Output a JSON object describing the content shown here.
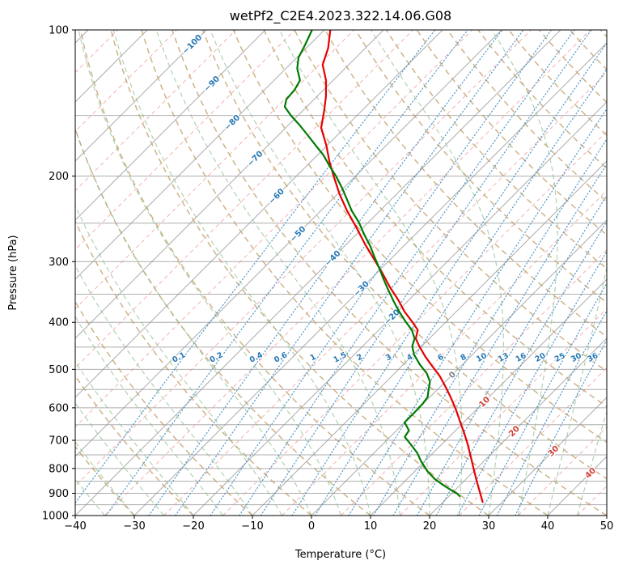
{
  "title": "wetPf2_C2E4.2023.322.14.06.G08",
  "axes": {
    "x": {
      "label": "Temperature (°C)",
      "min": -40,
      "max": 50,
      "ticks": [
        -40,
        -30,
        -20,
        -10,
        0,
        10,
        20,
        30,
        40,
        50
      ]
    },
    "y": {
      "label": "Pressure (hPa)",
      "min": 100,
      "max": 1000,
      "scale": "log",
      "ticks": [
        100,
        200,
        300,
        400,
        500,
        600,
        700,
        800,
        900,
        1000
      ]
    }
  },
  "chart_data": {
    "type": "line",
    "chart_kind": "skew-t log-p sounding",
    "skew_degrees": 45,
    "title": "wetPf2_C2E4.2023.322.14.06.G08",
    "xlabel": "Temperature (°C)",
    "ylabel": "Pressure (hPa)",
    "xlim": [
      -40,
      50
    ],
    "ylim": [
      1000,
      100
    ],
    "grid": true,
    "isobars_hpa": [
      100,
      150,
      200,
      250,
      300,
      350,
      400,
      450,
      500,
      550,
      600,
      650,
      700,
      750,
      800,
      850,
      900,
      950,
      1000
    ],
    "isotherms_c": {
      "start": -160,
      "end": 50,
      "step": 10
    },
    "isotherms_minor_c": {
      "start": -155,
      "end": 45,
      "step": 10
    },
    "dry_adiabats_c": {
      "start": -30,
      "end": 200,
      "step": 10
    },
    "moist_adiabats_c": {
      "start": -40,
      "end": 45,
      "step": 5
    },
    "mixing_ratio_g_kg": [
      0.1,
      0.2,
      0.4,
      0.6,
      1,
      1.5,
      2,
      3,
      4,
      6,
      8,
      10,
      13,
      16,
      20,
      25,
      30,
      36
    ],
    "mixing_label_pressure_hpa": 472,
    "isotherm_labels": [
      {
        "t": -100,
        "p": 107
      },
      {
        "t": -90,
        "p": 129
      },
      {
        "t": -80,
        "p": 155
      },
      {
        "t": -70,
        "p": 184
      },
      {
        "t": -60,
        "p": 220
      },
      {
        "t": -50,
        "p": 263
      },
      {
        "t": -40,
        "p": 295
      },
      {
        "t": -30,
        "p": 341
      },
      {
        "t": -20,
        "p": 390
      },
      {
        "t": 0,
        "p": 513
      },
      {
        "t": 10,
        "p": 583
      },
      {
        "t": 20,
        "p": 670
      },
      {
        "t": 30,
        "p": 736
      },
      {
        "t": 40,
        "p": 817
      }
    ],
    "series": [
      {
        "name": "temperature",
        "color": "#e60000",
        "points_p_t": [
          [
            100,
            -79.0
          ],
          [
            109,
            -76.3
          ],
          [
            118,
            -74.4
          ],
          [
            127,
            -71.2
          ],
          [
            137,
            -68.5
          ],
          [
            147,
            -66.3
          ],
          [
            159,
            -64.0
          ],
          [
            173,
            -60.1
          ],
          [
            187,
            -56.8
          ],
          [
            200,
            -53.7
          ],
          [
            218,
            -49.6
          ],
          [
            236,
            -45.5
          ],
          [
            254,
            -41.4
          ],
          [
            277,
            -36.7
          ],
          [
            296,
            -32.9
          ],
          [
            317,
            -29.0
          ],
          [
            339,
            -25.3
          ],
          [
            361,
            -21.6
          ],
          [
            380,
            -18.8
          ],
          [
            400,
            -15.6
          ],
          [
            415,
            -13.4
          ],
          [
            432,
            -12.3
          ],
          [
            448,
            -10.4
          ],
          [
            470,
            -7.7
          ],
          [
            492,
            -4.9
          ],
          [
            516,
            -1.9
          ],
          [
            542,
            0.8
          ],
          [
            568,
            3.3
          ],
          [
            601,
            6.2
          ],
          [
            637,
            9.0
          ],
          [
            675,
            11.8
          ],
          [
            715,
            14.5
          ],
          [
            758,
            17.1
          ],
          [
            804,
            19.7
          ],
          [
            852,
            22.3
          ],
          [
            892,
            24.4
          ],
          [
            938,
            26.7
          ]
        ]
      },
      {
        "name": "dewpoint",
        "color": "#007a00",
        "points_p_t": [
          [
            100,
            -82.1
          ],
          [
            107,
            -80.8
          ],
          [
            114,
            -79.7
          ],
          [
            120,
            -78.1
          ],
          [
            127,
            -75.6
          ],
          [
            133,
            -74.9
          ],
          [
            139,
            -74.7
          ],
          [
            144,
            -73.7
          ],
          [
            150,
            -71.2
          ],
          [
            157,
            -68.1
          ],
          [
            165,
            -64.9
          ],
          [
            173,
            -61.9
          ],
          [
            181,
            -59.0
          ],
          [
            191,
            -56.0
          ],
          [
            200,
            -53.3
          ],
          [
            211,
            -50.4
          ],
          [
            222,
            -47.8
          ],
          [
            236,
            -44.7
          ],
          [
            249,
            -41.6
          ],
          [
            264,
            -38.6
          ],
          [
            279,
            -35.6
          ],
          [
            294,
            -33.0
          ],
          [
            310,
            -30.3
          ],
          [
            326,
            -27.8
          ],
          [
            343,
            -25.2
          ],
          [
            361,
            -22.5
          ],
          [
            380,
            -19.7
          ],
          [
            398,
            -17.0
          ],
          [
            415,
            -14.4
          ],
          [
            432,
            -12.5
          ],
          [
            448,
            -11.6
          ],
          [
            466,
            -9.9
          ],
          [
            488,
            -7.3
          ],
          [
            510,
            -4.5
          ],
          [
            530,
            -2.6
          ],
          [
            550,
            -1.5
          ],
          [
            570,
            -0.4
          ],
          [
            589,
            -0.1
          ],
          [
            614,
            0.0
          ],
          [
            643,
            0.0
          ],
          [
            668,
            2.1
          ],
          [
            689,
            2.5
          ],
          [
            715,
            4.9
          ],
          [
            743,
            7.3
          ],
          [
            772,
            9.3
          ],
          [
            810,
            12.1
          ],
          [
            841,
            14.7
          ],
          [
            867,
            17.3
          ],
          [
            888,
            19.5
          ],
          [
            902,
            21.0
          ],
          [
            912,
            21.8
          ]
        ]
      }
    ],
    "colors": {
      "grid": "#929292",
      "isotherm_minor": "#f09090",
      "dry_adiabat": "#c2a06b",
      "moist_adiabat": "#86bb86",
      "mixing_line": "#4a94c8",
      "mixing_label": "#2878b5",
      "label_negative": "#2878b5",
      "label_zero": "#808080",
      "label_positive": "#cf3f36",
      "temperature": "#e60000",
      "dewpoint": "#007a00"
    }
  }
}
